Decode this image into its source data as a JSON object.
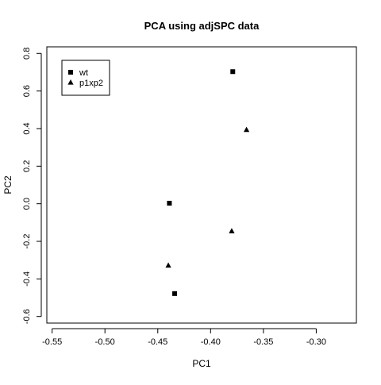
{
  "chart_data": {
    "type": "scatter",
    "title": "PCA using adjSPC data",
    "xlabel": "PC1",
    "ylabel": "PC2",
    "xlim": [
      -0.555,
      -0.262
    ],
    "ylim": [
      -0.635,
      0.835
    ],
    "x_ticks": [
      -0.55,
      -0.5,
      -0.45,
      -0.4,
      -0.35,
      -0.3
    ],
    "x_tick_labels": [
      "-0.55",
      "-0.50",
      "-0.45",
      "-0.40",
      "-0.35",
      "-0.30"
    ],
    "y_ticks": [
      -0.6,
      -0.4,
      -0.2,
      0.0,
      0.2,
      0.4,
      0.6,
      0.8
    ],
    "y_tick_labels": [
      "-0.6",
      "-0.4",
      "-0.2",
      "0.0",
      "0.2",
      "0.4",
      "0.6",
      "0.8"
    ],
    "grid": false,
    "legend_position": "top-left",
    "series": [
      {
        "name": "wt",
        "marker": "square",
        "color": "#000000",
        "points": [
          {
            "x": -0.379,
            "y": 0.703
          },
          {
            "x": -0.439,
            "y": 0.003
          },
          {
            "x": -0.434,
            "y": -0.478
          }
        ]
      },
      {
        "name": "p1xp2",
        "marker": "triangle",
        "color": "#000000",
        "points": [
          {
            "x": -0.366,
            "y": 0.393
          },
          {
            "x": -0.38,
            "y": -0.146
          },
          {
            "x": -0.44,
            "y": -0.329
          }
        ]
      }
    ]
  }
}
